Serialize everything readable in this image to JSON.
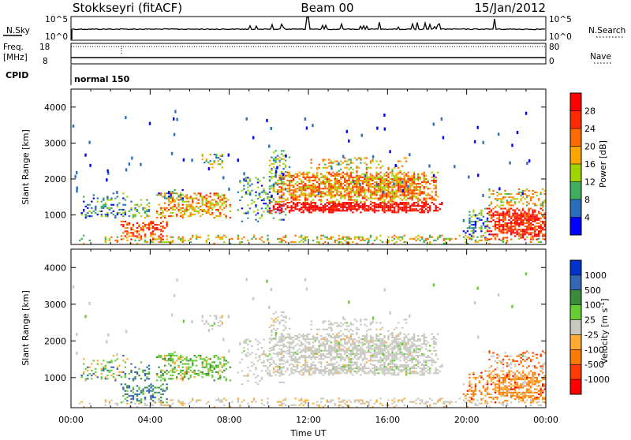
{
  "header": {
    "station": "Stokkseyri (fitACF)",
    "beam": "Beam 00",
    "date": "15/Jan/2012"
  },
  "strip_panels": {
    "nsky": {
      "label": "N.Sky",
      "ticks": [
        "10^5",
        "10^0"
      ]
    },
    "nsearch": {
      "label": "N.Search",
      "ticks": [
        "10^5",
        "10^0"
      ]
    },
    "freq": {
      "label_line1": "Freq.",
      "label_line2": "[MHz]",
      "ticks": [
        "18",
        "8"
      ]
    },
    "nave": {
      "label": "Nave",
      "ticks": [
        "80",
        "0"
      ]
    },
    "cpid": {
      "label": "CPID",
      "mode": "normal 150"
    }
  },
  "chart_data": [
    {
      "type": "heatmap",
      "name": "power",
      "ylabel": "Slant Range [km]",
      "xlabel": "Time UT",
      "xlim": [
        "00:00",
        "24:00"
      ],
      "ylim": [
        180,
        4500
      ],
      "y_ticks": [
        1000,
        2000,
        3000,
        4000
      ],
      "x_tick_labels": [
        "00:00",
        "04:00",
        "08:00",
        "12:00",
        "16:00",
        "20:00",
        "00:00"
      ],
      "colorbar": {
        "label": "Power [dB]",
        "ticks": [
          "28",
          "24",
          "20",
          "16",
          "12",
          "8",
          "4"
        ],
        "colors": [
          "#ff0000",
          "#ff2a00",
          "#ff6a00",
          "#ffa500",
          "#9fd400",
          "#3fae5f",
          "#2a6fbd",
          "#0000ff"
        ]
      }
    },
    {
      "type": "heatmap",
      "name": "velocity",
      "ylabel": "Slant Range [km]",
      "xlabel": "Time UT",
      "xlim": [
        "00:00",
        "24:00"
      ],
      "ylim": [
        180,
        4500
      ],
      "y_ticks": [
        1000,
        2000,
        3000,
        4000
      ],
      "x_tick_labels": [
        "00:00",
        "04:00",
        "08:00",
        "12:00",
        "16:00",
        "20:00",
        "00:00"
      ],
      "colorbar": {
        "label": "Velocity [m s",
        "label_sup": "-1",
        "label_close": "]",
        "ticks": [
          "1000",
          "500",
          "100",
          "25",
          "-25",
          "-100",
          "-500",
          "-1000"
        ],
        "colors": [
          "#0033cc",
          "#3366b3",
          "#3a8c3a",
          "#66cc33",
          "#c8c8c0",
          "#ffaa33",
          "#ff7a00",
          "#ff3a00",
          "#ff0000"
        ]
      }
    }
  ],
  "colors": {
    "ground": "#c8c8c0",
    "quiet_power": "#1f4fc8"
  }
}
